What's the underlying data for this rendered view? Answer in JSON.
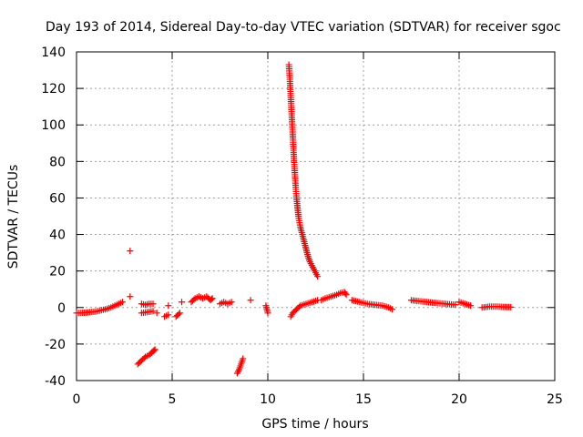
{
  "chart_data": {
    "type": "scatter",
    "title": "Day 193 of 2014, Sidereal Day-to-day VTEC variation (SDTVAR) for receiver sgoc",
    "xlabel": "GPS time / hours",
    "ylabel": "SDTVAR / TECUs",
    "xlim": [
      0,
      25
    ],
    "ylim": [
      -40,
      140
    ],
    "xticks": [
      0,
      5,
      10,
      15,
      20,
      25
    ],
    "yticks": [
      -40,
      -20,
      0,
      20,
      40,
      60,
      80,
      100,
      120,
      140
    ],
    "grid": true,
    "marker": "+",
    "color": "#ff0000",
    "segments": [
      {
        "x": [
          0.0,
          0.5,
          1.0,
          1.5,
          1.8,
          2.0,
          2.2,
          2.4
        ],
        "y": [
          -3,
          -2.8,
          -2.2,
          -1,
          0,
          1,
          2,
          3
        ]
      },
      {
        "x": [
          2.8
        ],
        "y": [
          31
        ]
      },
      {
        "x": [
          2.8
        ],
        "y": [
          6
        ]
      },
      {
        "x": [
          3.2,
          3.4,
          3.6,
          3.8,
          4.0,
          4.1
        ],
        "y": [
          -31,
          -29,
          -27,
          -26,
          -24,
          -23
        ]
      },
      {
        "x": [
          3.4,
          3.6,
          3.8,
          4.0
        ],
        "y": [
          2,
          1.5,
          2,
          2
        ]
      },
      {
        "x": [
          3.4,
          3.7,
          4.0
        ],
        "y": [
          -3,
          -2.5,
          -2
        ]
      },
      {
        "x": [
          4.2
        ],
        "y": [
          -3
        ]
      },
      {
        "x": [
          4.8
        ],
        "y": [
          1
        ]
      },
      {
        "x": [
          4.6,
          4.8
        ],
        "y": [
          -5,
          -4
        ]
      },
      {
        "x": [
          5.2,
          5.4
        ],
        "y": [
          -5,
          -3
        ]
      },
      {
        "x": [
          5.5
        ],
        "y": [
          3
        ]
      },
      {
        "x": [
          6.0,
          6.2,
          6.4,
          6.6,
          6.8,
          7.0,
          7.1
        ],
        "y": [
          3,
          5,
          6,
          5,
          6,
          4,
          5
        ]
      },
      {
        "x": [
          7.5,
          7.7,
          7.9,
          8.1
        ],
        "y": [
          2,
          3,
          2,
          3
        ]
      },
      {
        "x": [
          8.4,
          8.5,
          8.6,
          8.7
        ],
        "y": [
          -36,
          -34,
          -31,
          -28
        ]
      },
      {
        "x": [
          9.1
        ],
        "y": [
          4
        ]
      },
      {
        "x": [
          9.9,
          10.0
        ],
        "y": [
          1,
          -3
        ]
      },
      {
        "x": [
          11.2,
          11.3,
          11.5,
          11.7,
          12.0,
          12.3,
          12.6
        ],
        "y": [
          -5,
          -3,
          -1,
          1,
          2,
          3,
          4
        ]
      },
      {
        "x": [
          11.1,
          11.15,
          11.2,
          11.25,
          11.3,
          11.35,
          11.4,
          11.45,
          11.5,
          11.55,
          11.6,
          11.7,
          11.8,
          11.9,
          12.0,
          12.1,
          12.2,
          12.35,
          12.5,
          12.6
        ],
        "y": [
          133,
          125,
          115,
          105,
          95,
          85,
          75,
          67,
          60,
          55,
          50,
          44,
          40,
          36,
          32,
          28,
          25,
          22,
          19,
          17
        ]
      },
      {
        "x": [
          12.8,
          13.0,
          13.3,
          13.6,
          13.8,
          14.0,
          14.1
        ],
        "y": [
          4,
          5,
          6,
          7,
          8,
          8.5,
          7
        ]
      },
      {
        "x": [
          14.4,
          14.8,
          15.2,
          15.6,
          16.0,
          16.3,
          16.5
        ],
        "y": [
          4,
          3,
          2,
          1.5,
          1,
          0,
          -1
        ]
      },
      {
        "x": [
          17.5,
          17.9,
          18.3,
          18.8,
          19.3,
          19.8
        ],
        "y": [
          4,
          3.5,
          3,
          2.5,
          2,
          1.5
        ]
      },
      {
        "x": [
          20.0,
          20.3,
          20.6
        ],
        "y": [
          3,
          2,
          1
        ]
      },
      {
        "x": [
          21.2,
          21.6,
          22.0,
          22.4,
          22.7
        ],
        "y": [
          0,
          0.5,
          0.5,
          0.3,
          0.2
        ]
      }
    ]
  }
}
